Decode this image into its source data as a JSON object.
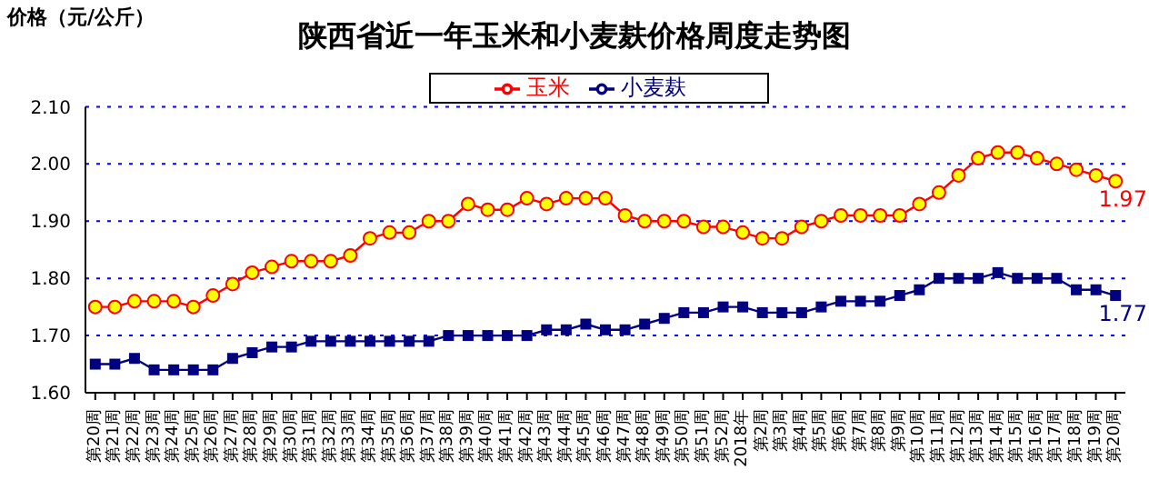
{
  "chart_data": {
    "type": "line",
    "title": "陕西省近一年玉米和小麦麸价格周度走势图",
    "ylabel": "价格（元/公斤）",
    "categories": [
      "第20周",
      "第21周",
      "第22周",
      "第23周",
      "第24周",
      "第25周",
      "第26周",
      "第27周",
      "第28周",
      "第29周",
      "第30周",
      "第31周",
      "第32周",
      "第33周",
      "第34周",
      "第35周",
      "第36周",
      "第37周",
      "第38周",
      "第39周",
      "第40周",
      "第41周",
      "第42周",
      "第43周",
      "第44周",
      "第45周",
      "第46周",
      "第47周",
      "第48周",
      "第49周",
      "第50周",
      "第51周",
      "第52周",
      "2018年",
      "第2周",
      "第3周",
      "第4周",
      "第5周",
      "第6周",
      "第7周",
      "第8周",
      "第9周",
      "第10周",
      "第11周",
      "第12周",
      "第13周",
      "第14周",
      "第15周",
      "第16周",
      "第17周",
      "第18周",
      "第19周",
      "第20周"
    ],
    "series": [
      {
        "name": "玉米",
        "color": "#ff0000",
        "marker": "circle",
        "values": [
          1.75,
          1.75,
          1.76,
          1.76,
          1.76,
          1.75,
          1.77,
          1.79,
          1.81,
          1.82,
          1.83,
          1.83,
          1.83,
          1.84,
          1.87,
          1.88,
          1.88,
          1.9,
          1.9,
          1.93,
          1.92,
          1.92,
          1.94,
          1.93,
          1.94,
          1.94,
          1.94,
          1.91,
          1.9,
          1.9,
          1.9,
          1.89,
          1.89,
          1.88,
          1.87,
          1.87,
          1.89,
          1.9,
          1.91,
          1.91,
          1.91,
          1.91,
          1.93,
          1.95,
          1.98,
          2.01,
          2.02,
          2.02,
          2.01,
          2.0,
          1.99,
          1.98,
          1.97
        ],
        "value_labels": [
          null,
          null,
          null,
          null,
          null,
          null,
          null,
          null,
          null,
          null,
          null,
          null,
          null,
          null,
          null,
          null,
          null,
          null,
          null,
          null,
          null,
          null,
          null,
          null,
          null,
          null,
          null,
          null,
          null,
          null,
          null,
          null,
          null,
          null,
          null,
          null,
          null,
          null,
          null,
          null,
          null,
          null,
          null,
          null,
          null,
          null,
          null,
          null,
          null,
          null,
          null,
          null,
          "1.97"
        ]
      },
      {
        "name": "小麦麸",
        "color": "#000080",
        "marker": "square",
        "values": [
          1.65,
          1.65,
          1.66,
          1.64,
          1.64,
          1.64,
          1.64,
          1.66,
          1.67,
          1.68,
          1.68,
          1.69,
          1.69,
          1.69,
          1.69,
          1.69,
          1.69,
          1.69,
          1.7,
          1.7,
          1.7,
          1.7,
          1.7,
          1.71,
          1.71,
          1.72,
          1.71,
          1.71,
          1.72,
          1.73,
          1.74,
          1.74,
          1.75,
          1.75,
          1.74,
          1.74,
          1.74,
          1.75,
          1.76,
          1.76,
          1.76,
          1.77,
          1.78,
          1.8,
          1.8,
          1.8,
          1.81,
          1.8,
          1.8,
          1.8,
          1.78,
          1.78,
          1.77
        ],
        "value_labels": [
          null,
          null,
          null,
          null,
          null,
          null,
          null,
          null,
          null,
          null,
          null,
          null,
          null,
          null,
          null,
          null,
          null,
          null,
          null,
          null,
          null,
          null,
          null,
          null,
          null,
          null,
          null,
          null,
          null,
          null,
          null,
          null,
          null,
          null,
          null,
          null,
          null,
          null,
          null,
          null,
          null,
          null,
          null,
          null,
          null,
          null,
          null,
          null,
          null,
          null,
          null,
          null,
          "1.77"
        ]
      }
    ],
    "ylim": [
      1.6,
      2.1
    ],
    "yticks": [
      {
        "value": 1.6,
        "label": "1.60"
      },
      {
        "value": 1.7,
        "label": "1.70"
      },
      {
        "value": 1.8,
        "label": "1.80"
      },
      {
        "value": 1.9,
        "label": "1.90"
      },
      {
        "value": 2.0,
        "label": "2.00"
      },
      {
        "value": 2.1,
        "label": "2.10"
      }
    ],
    "grid": "y",
    "legend": "top",
    "line_style": "solid"
  }
}
